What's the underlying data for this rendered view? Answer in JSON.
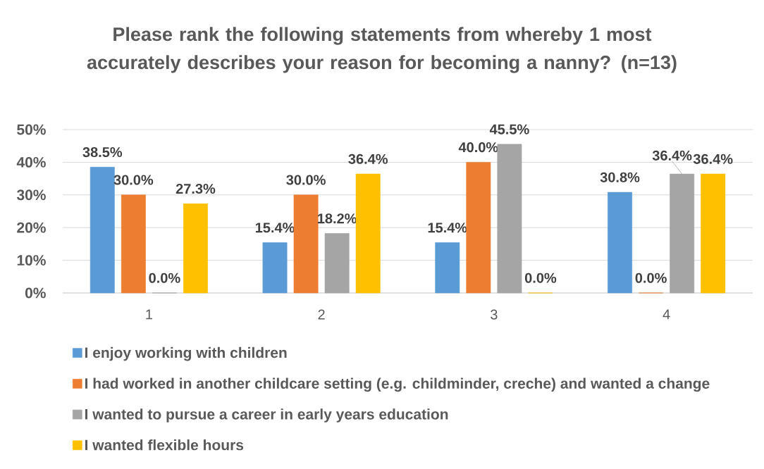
{
  "chart_data": {
    "type": "bar",
    "title": "Please rank the following statements from whereby 1 most accurately describes your reason for becoming a nanny? (n=13)",
    "categories": [
      "1",
      "2",
      "3",
      "4"
    ],
    "series": [
      {
        "name": "I  enjoy working with children",
        "color": "#5b9bd5",
        "values": [
          38.5,
          15.4,
          15.4,
          30.8
        ],
        "value_labels": [
          "38.5%",
          "15.4%",
          "15.4%",
          "30.8%"
        ]
      },
      {
        "name": "I had worked in another childcare setting (e.g. childminder, creche)  and wanted a change",
        "color": "#ed7d31",
        "values": [
          30.0,
          30.0,
          40.0,
          0.0
        ],
        "value_labels": [
          "30.0%",
          "30.0%",
          "40.0%",
          "0.0%"
        ]
      },
      {
        "name": "I wanted to pursue a career in early years education",
        "color": "#a5a5a5",
        "values": [
          0.0,
          18.2,
          45.5,
          36.4
        ],
        "value_labels": [
          "0.0%",
          "18.2%",
          "45.5%",
          "36.4%"
        ]
      },
      {
        "name": "I wanted flexible hours",
        "color": "#ffc000",
        "values": [
          27.3,
          36.4,
          0.0,
          36.4
        ],
        "value_labels": [
          "27.3%",
          "36.4%",
          "0.0%",
          "36.4%"
        ]
      }
    ],
    "ylim": [
      0,
      50
    ],
    "yticks": [
      {
        "value": 0,
        "label": "0%"
      },
      {
        "value": 10,
        "label": "10%"
      },
      {
        "value": 20,
        "label": "20%"
      },
      {
        "value": 30,
        "label": "30%"
      },
      {
        "value": 40,
        "label": "40%"
      },
      {
        "value": 50,
        "label": "50%"
      }
    ],
    "grid": "y",
    "legend": "bottom"
  }
}
